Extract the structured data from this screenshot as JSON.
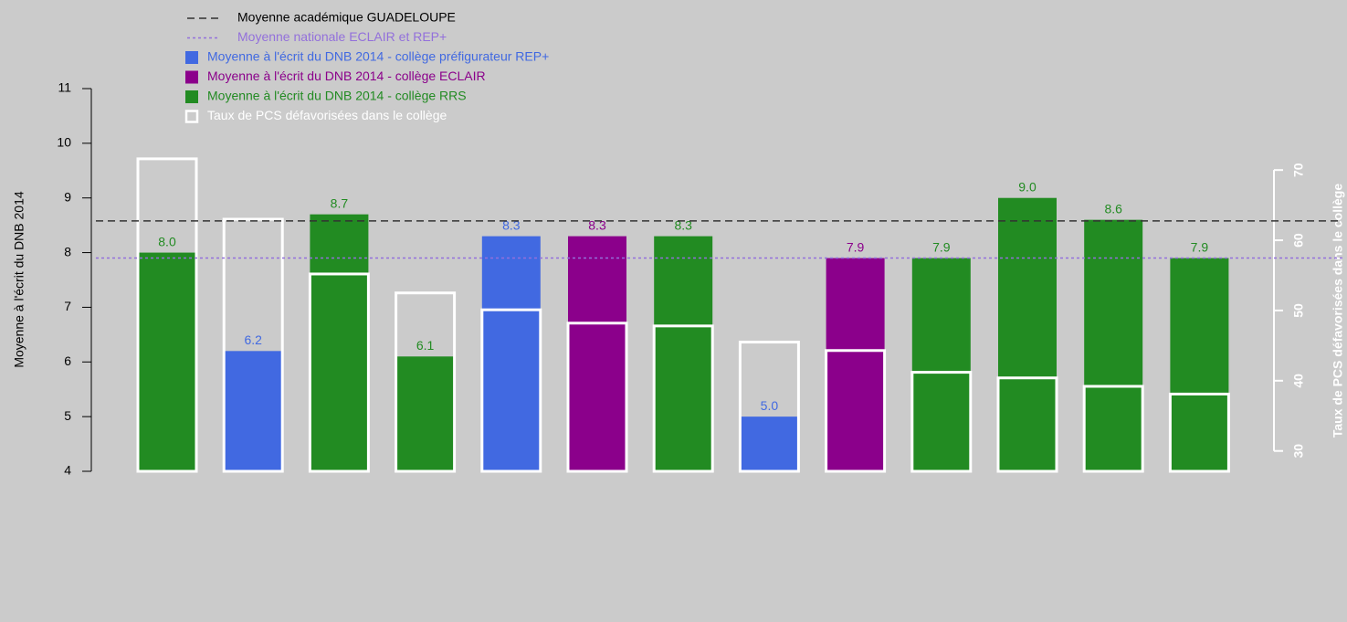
{
  "chart_data": {
    "type": "bar",
    "ylabel": "Moyenne à l'écrit du DNB 2014",
    "y2label": "Taux de PCS défavorisées dans le collège",
    "categories": [
      null,
      null,
      null,
      null,
      null,
      null,
      null,
      null,
      null,
      null,
      null,
      null,
      null
    ],
    "ylim": [
      4,
      11
    ],
    "yticks": [
      4,
      5,
      6,
      7,
      8,
      9,
      10,
      11
    ],
    "y2lim": [
      27.1,
      81.6
    ],
    "y2ticks": [
      30,
      40,
      50,
      60,
      70
    ],
    "hlines": [
      {
        "name": "Moyenne académique GUADELOUPE",
        "value": 8.58,
        "color": "#333333",
        "dash": "8,5"
      },
      {
        "name": "Moyenne nationale ECLAIR et REP+",
        "value": 7.9,
        "color": "#9370db",
        "dash": "3,3"
      }
    ],
    "series": [
      {
        "name": "Moyenne à l'écrit du DNB 2014 - collège préfigurateur REP+",
        "color": "#4169e1",
        "values": [
          null,
          6.2,
          null,
          null,
          8.3,
          null,
          null,
          5.0,
          null,
          null,
          null,
          null,
          null
        ],
        "value_labels": [
          null,
          "6.2",
          null,
          null,
          "8.3",
          null,
          null,
          "5.0",
          null,
          null,
          null,
          null,
          null
        ]
      },
      {
        "name": "Moyenne à l'écrit du DNB 2014 - collège ECLAIR",
        "color": "#8b008b",
        "values": [
          null,
          null,
          null,
          null,
          null,
          8.3,
          null,
          null,
          7.9,
          null,
          null,
          null,
          null
        ],
        "value_labels": [
          null,
          null,
          null,
          null,
          null,
          "8.3",
          null,
          null,
          "7.9",
          null,
          null,
          null,
          null
        ]
      },
      {
        "name": "Moyenne à l'écrit du DNB 2014 - collège RRS",
        "color": "#228b22",
        "values": [
          8.0,
          null,
          8.7,
          6.1,
          null,
          null,
          8.3,
          null,
          null,
          7.9,
          9.0,
          8.6,
          7.9
        ],
        "value_labels": [
          "8.0",
          null,
          "8.7",
          "6.1",
          null,
          null,
          "8.3",
          null,
          null,
          "7.9",
          "9.0",
          "8.6",
          "7.9"
        ]
      },
      {
        "name": "Taux de PCS défavorisées dans le collège",
        "color": "#ffffff",
        "axis": "y2",
        "style": "outline",
        "values": [
          71.6,
          63.0,
          55.2,
          52.5,
          50.1,
          48.2,
          47.8,
          45.5,
          44.3,
          41.2,
          40.4,
          39.2,
          38.1
        ]
      }
    ]
  }
}
